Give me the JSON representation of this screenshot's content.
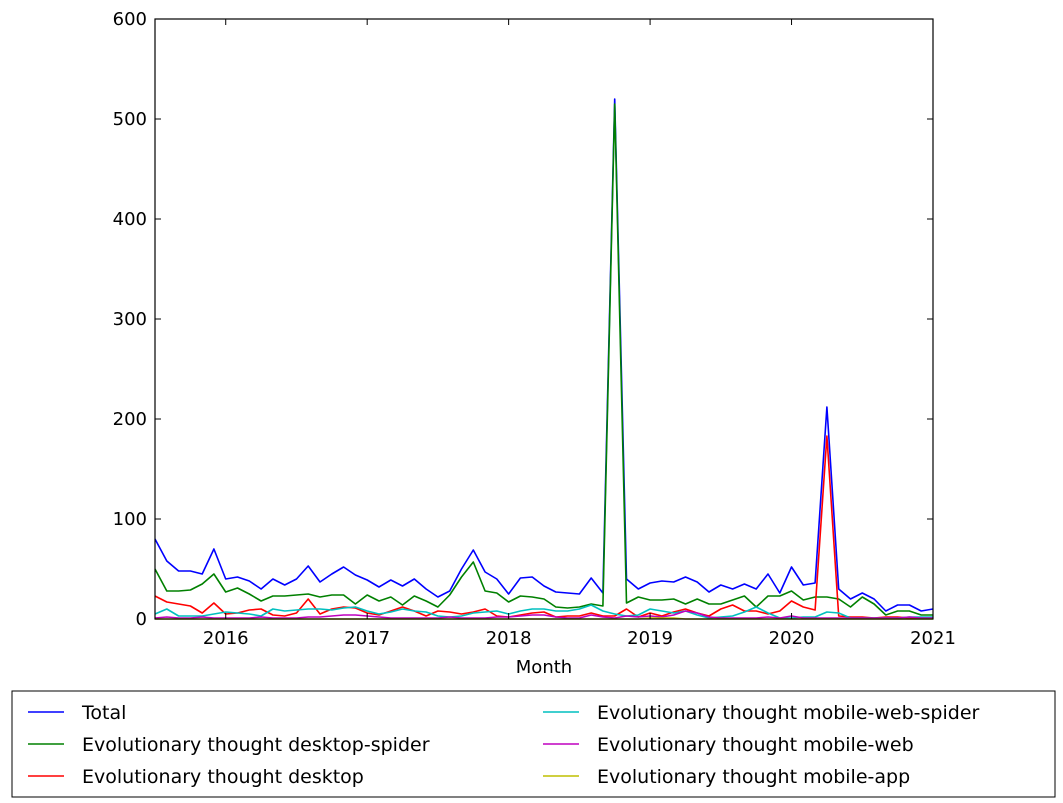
{
  "chart_data": {
    "type": "line",
    "title": "",
    "xlabel": "Month",
    "ylabel": "",
    "xlim": [
      2015.5,
      2021.0
    ],
    "ylim": [
      0,
      600
    ],
    "x_start": "2015-07",
    "x_step": "month",
    "xticks": [
      2016,
      2017,
      2018,
      2019,
      2020,
      2021
    ],
    "xtick_labels": [
      "2016",
      "2017",
      "2018",
      "2019",
      "2020",
      "2021"
    ],
    "yticks": [
      0,
      100,
      200,
      300,
      400,
      500,
      600
    ],
    "ytick_labels": [
      "0",
      "100",
      "200",
      "300",
      "400",
      "500",
      "600"
    ],
    "legend_position": "bottom-outside",
    "series": [
      {
        "name": "Total",
        "color": "#0000ff",
        "values": [
          80,
          58,
          48,
          48,
          45,
          70,
          40,
          42,
          38,
          30,
          40,
          34,
          40,
          53,
          37,
          45,
          52,
          44,
          39,
          32,
          39,
          33,
          40,
          30,
          22,
          28,
          50,
          69,
          47,
          40,
          25,
          41,
          42,
          33,
          27,
          26,
          25,
          41,
          26,
          520,
          40,
          30,
          36,
          38,
          37,
          42,
          37,
          27,
          34,
          30,
          35,
          30,
          45,
          26,
          52,
          34,
          36,
          212,
          30,
          20,
          26,
          20,
          8,
          14,
          14,
          8,
          10
        ]
      },
      {
        "name": "Evolutionary thought desktop-spider",
        "color": "#008000",
        "values": [
          50,
          28,
          28,
          29,
          35,
          45,
          27,
          31,
          25,
          18,
          23,
          23,
          24,
          25,
          22,
          24,
          24,
          15,
          24,
          18,
          22,
          14,
          23,
          18,
          12,
          24,
          42,
          57,
          28,
          26,
          17,
          23,
          22,
          20,
          12,
          11,
          12,
          15,
          13,
          515,
          16,
          22,
          19,
          19,
          20,
          15,
          20,
          15,
          15,
          19,
          23,
          12,
          23,
          23,
          28,
          19,
          22,
          22,
          20,
          12,
          22,
          15,
          4,
          8,
          8,
          4,
          4
        ]
      },
      {
        "name": "Evolutionary thought desktop",
        "color": "#ff0000",
        "values": [
          23,
          17,
          15,
          13,
          6,
          16,
          5,
          6,
          9,
          10,
          4,
          3,
          6,
          20,
          5,
          10,
          12,
          11,
          6,
          4,
          8,
          12,
          8,
          3,
          8,
          7,
          5,
          7,
          10,
          3,
          2,
          4,
          6,
          7,
          2,
          3,
          3,
          6,
          3,
          3,
          10,
          2,
          6,
          3,
          7,
          10,
          6,
          3,
          10,
          14,
          8,
          8,
          5,
          8,
          18,
          12,
          9,
          183,
          3,
          2,
          2,
          1,
          2,
          2,
          1,
          1,
          1
        ]
      },
      {
        "name": "Evolutionary thought mobile-web-spider",
        "color": "#00bfbf",
        "values": [
          5,
          10,
          3,
          3,
          3,
          5,
          7,
          6,
          5,
          3,
          10,
          8,
          9,
          10,
          10,
          9,
          11,
          12,
          8,
          5,
          7,
          10,
          8,
          7,
          3,
          2,
          3,
          6,
          7,
          8,
          5,
          8,
          10,
          10,
          8,
          8,
          10,
          14,
          8,
          5,
          3,
          4,
          10,
          8,
          6,
          8,
          4,
          1,
          2,
          3,
          7,
          12,
          6,
          1,
          1,
          2,
          2,
          7,
          6,
          1,
          1,
          1,
          1,
          1,
          2,
          2,
          2
        ]
      },
      {
        "name": "Evolutionary thought mobile-web",
        "color": "#bf00bf",
        "values": [
          1,
          2,
          1,
          1,
          2,
          1,
          1,
          1,
          1,
          2,
          1,
          1,
          1,
          2,
          2,
          3,
          4,
          4,
          3,
          2,
          1,
          1,
          1,
          1,
          1,
          2,
          1,
          1,
          1,
          2,
          2,
          3,
          4,
          4,
          2,
          1,
          1,
          4,
          2,
          1,
          3,
          2,
          3,
          2,
          4,
          8,
          6,
          2,
          1,
          1,
          1,
          1,
          2,
          1,
          3,
          1,
          1,
          1,
          1,
          1,
          1,
          1,
          1,
          1,
          2,
          1,
          1
        ]
      },
      {
        "name": "Evolutionary thought mobile-app",
        "color": "#bfbf00",
        "values": [
          0,
          0,
          0,
          0,
          0,
          0,
          0,
          0,
          0,
          0,
          0,
          0,
          0,
          0,
          0,
          0,
          0,
          0,
          0,
          0,
          0,
          0,
          0,
          0,
          0,
          0,
          0,
          0,
          0,
          0,
          0,
          0,
          0,
          0,
          0,
          0,
          0,
          0,
          0,
          0,
          0,
          0,
          1,
          1,
          1,
          0,
          0,
          0,
          0,
          0,
          0,
          0,
          0,
          0,
          0,
          0,
          0,
          0,
          0,
          0,
          0,
          0,
          0,
          0,
          0,
          0,
          0
        ]
      }
    ]
  }
}
